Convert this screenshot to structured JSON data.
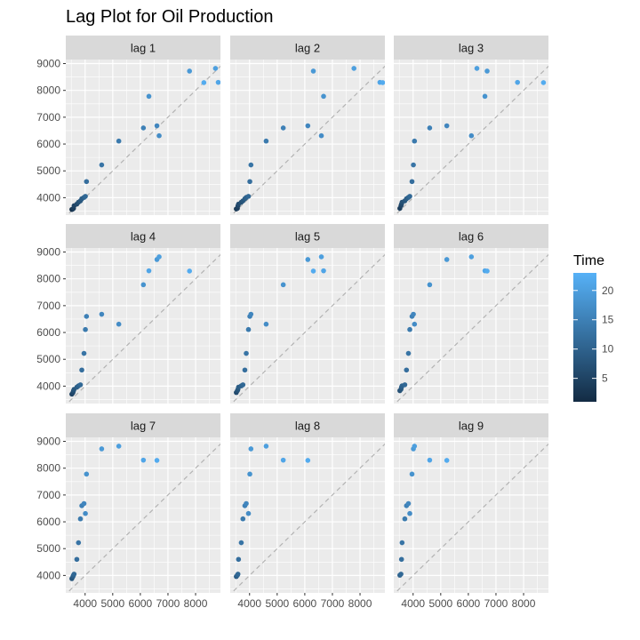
{
  "chart_data": {
    "type": "scatter",
    "title": "Lag Plot for Oil Production",
    "xlabel": "",
    "ylabel": "",
    "series_values": [
      3520,
      3560,
      3580,
      3600,
      3700,
      3760,
      3830,
      3880,
      3960,
      4010,
      4050,
      4600,
      5220,
      6110,
      6600,
      6680,
      6310,
      7780,
      8720,
      8820,
      8300,
      8290
    ],
    "time_values": [
      1,
      2,
      3,
      4,
      5,
      6,
      7,
      8,
      9,
      10,
      11,
      12,
      13,
      14,
      15,
      16,
      17,
      18,
      19,
      20,
      21,
      22
    ],
    "panels": [
      {
        "label": "lag 1",
        "lag": 1
      },
      {
        "label": "lag 2",
        "lag": 2
      },
      {
        "label": "lag 3",
        "lag": 3
      },
      {
        "label": "lag 4",
        "lag": 4
      },
      {
        "label": "lag 5",
        "lag": 5
      },
      {
        "label": "lag 6",
        "lag": 6
      },
      {
        "label": "lag 7",
        "lag": 7
      },
      {
        "label": "lag 8",
        "lag": 8
      },
      {
        "label": "lag 9",
        "lag": 9
      }
    ],
    "xlim": [
      3300,
      8900
    ],
    "ylim": [
      3350,
      9150
    ],
    "x_ticks": [
      4000,
      5000,
      6000,
      7000,
      8000
    ],
    "x_tick_labels": [
      "4000",
      "5000",
      "6000",
      "7000",
      "8000"
    ],
    "y_ticks": [
      4000,
      5000,
      6000,
      7000,
      8000,
      9000
    ],
    "y_tick_labels": [
      "4000",
      "5000",
      "6000",
      "7000",
      "8000",
      "9000"
    ],
    "legend": {
      "title": "Time",
      "placement": "right",
      "range": [
        1,
        23
      ],
      "ticks": [
        5,
        10,
        15,
        20
      ],
      "tick_labels": [
        "5",
        "10",
        "15",
        "20"
      ]
    },
    "colors": {
      "low": "#132B43",
      "high": "#56B1F7",
      "panel_bg": "#EBEBEB",
      "strip_bg": "#D9D9D9",
      "grid": "#FFFFFF",
      "diagonal": "#B3B3B3"
    }
  }
}
